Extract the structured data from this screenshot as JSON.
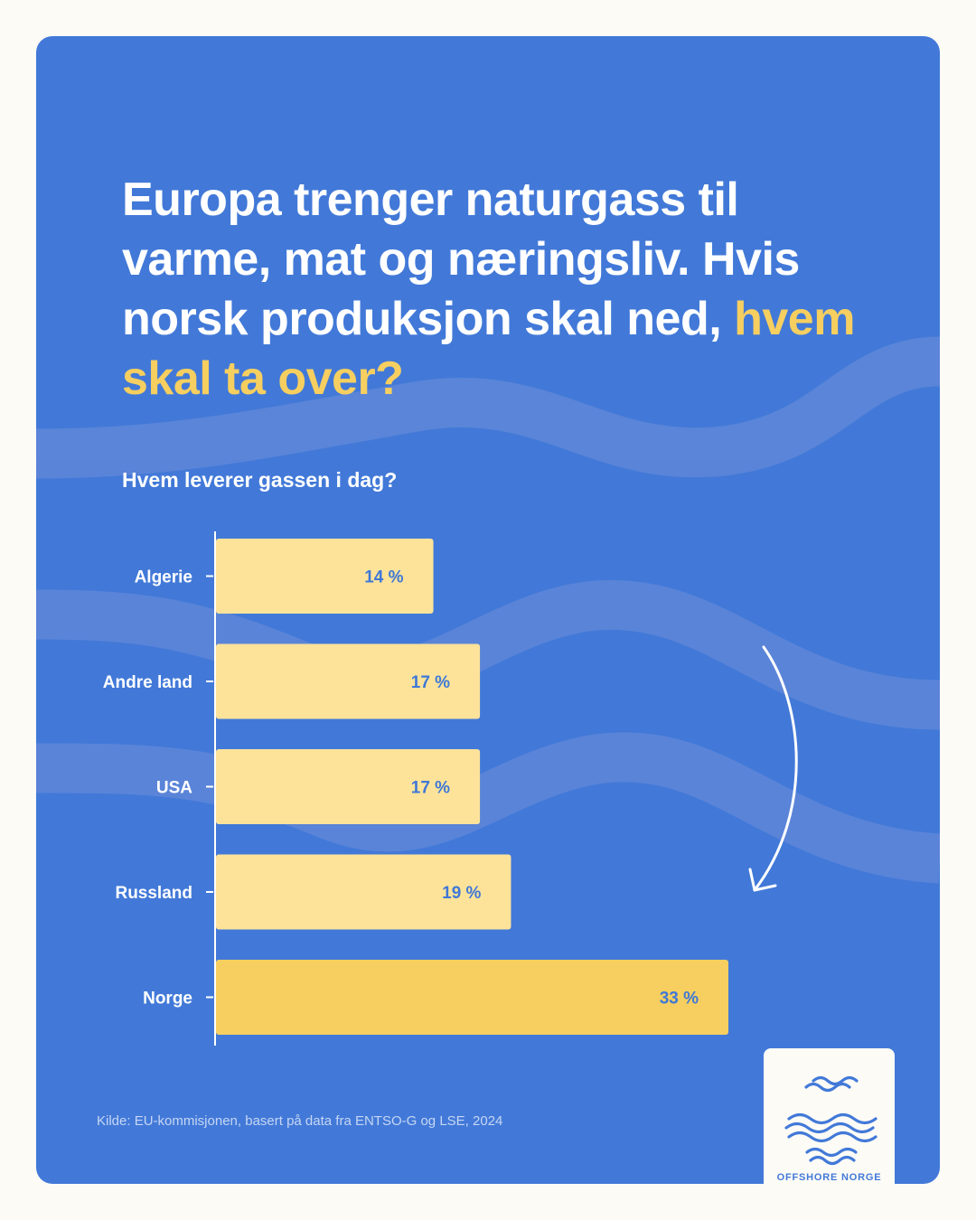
{
  "title": {
    "line_plain": "Europa trenger naturgass til varme, mat og næringsliv. Hvis norsk produksjon skal ned,",
    "highlight": "hvem skal ta over?"
  },
  "colors": {
    "background": "#4279d8",
    "bar": "#fde39a",
    "bar_highlight": "#f6cf60",
    "label_blue": "#3f78d6",
    "page": "#fcfbf6"
  },
  "chart_data": {
    "type": "bar",
    "orientation": "horizontal",
    "title": "Hvem leverer gassen i dag?",
    "categories": [
      "Algerie",
      "Andre land",
      "USA",
      "Russland",
      "Norge"
    ],
    "values": [
      14,
      17,
      17,
      19,
      33
    ],
    "value_labels": [
      "14 %",
      "17 %",
      "17 %",
      "19 %",
      "33 %"
    ],
    "highlight": "Norge",
    "xlim": [
      0,
      33
    ]
  },
  "source": "Kilde: EU-kommisjonen, basert på data fra ENTSO-G og LSE, 2024",
  "logo": {
    "text": "OFFSHORE NORGE"
  }
}
